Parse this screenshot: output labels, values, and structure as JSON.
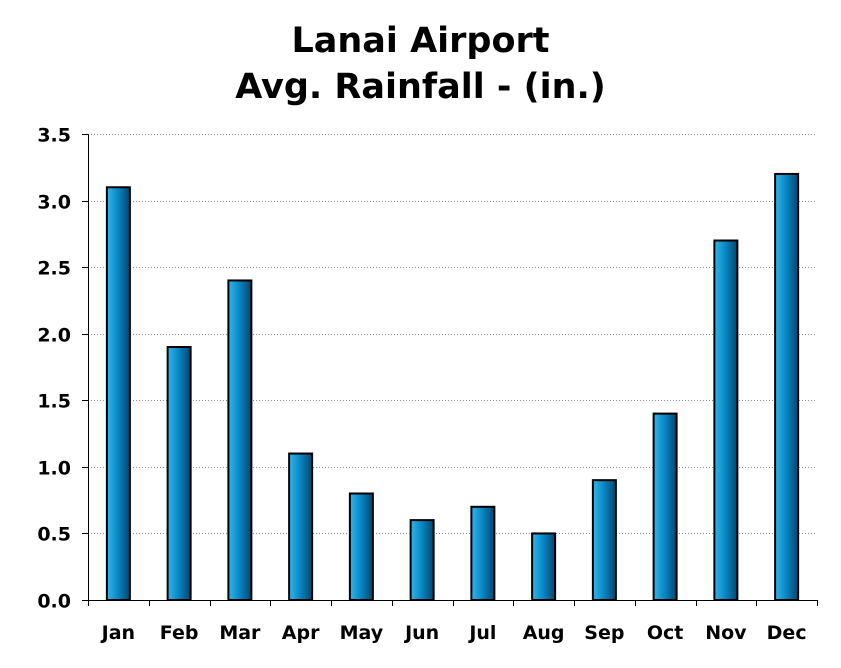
{
  "chart_data": {
    "type": "bar",
    "title": [
      "Lanai Airport",
      "Avg. Rainfall - (in.)"
    ],
    "categories": [
      "Jan",
      "Feb",
      "Mar",
      "Apr",
      "May",
      "Jun",
      "Jul",
      "Aug",
      "Sep",
      "Oct",
      "Nov",
      "Dec"
    ],
    "values": [
      3.1,
      1.9,
      2.4,
      1.1,
      0.8,
      0.6,
      0.7,
      0.5,
      0.9,
      1.4,
      2.7,
      3.2
    ],
    "ylim": [
      0,
      3.5
    ],
    "yticks": [
      "0.0",
      "0.5",
      "1.0",
      "1.5",
      "2.0",
      "2.5",
      "3.0",
      "3.5"
    ],
    "ytick_values": [
      0,
      0.5,
      1.0,
      1.5,
      2.0,
      2.5,
      3.0,
      3.5
    ],
    "grid": true,
    "legend": "none",
    "colors": {
      "bar_light": "#33b5e8",
      "bar_mid": "#0a8ac8",
      "bar_dark": "#04456b",
      "bar_outline": "#000000",
      "grid": "#8a8a8a",
      "axis": "#000000"
    }
  }
}
